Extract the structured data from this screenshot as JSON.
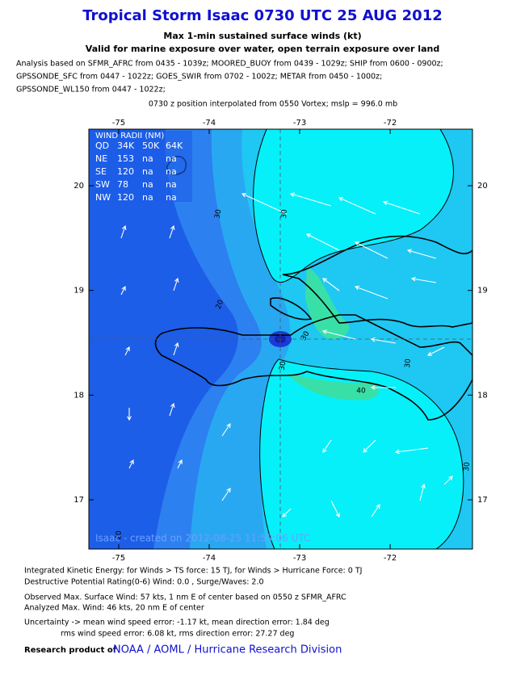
{
  "header": {
    "title": "Tropical Storm Isaac 0730 UTC 25 AUG 2012",
    "subtitle": "Max 1-min sustained surface winds (kt)",
    "subtitle2": "Valid for marine exposure over water, open terrain exposure over land",
    "analysis": [
      "Analysis based on SFMR_AFRC from 0435 - 1039z; MOORED_BUOY from 0439 - 1029z; SHIP from 0600 - 0900z;",
      "GPSSONDE_SFC from 0447 - 1022z; GOES_SWIR from 0702 - 1002z; METAR from 0450 - 1000z;",
      "GPSSONDE_WL150 from 0447 - 1022z;"
    ],
    "position": "0730 z position interpolated from 0550 Vortex; mslp = 996.0 mb"
  },
  "map": {
    "xlim": [
      -75.33,
      -71.09
    ],
    "ylim": [
      16.53,
      20.54
    ],
    "xticks": [
      -75,
      -74,
      -73,
      -72
    ],
    "yticks": [
      17,
      18,
      19,
      20
    ],
    "contour_labels": [
      30,
      30,
      20,
      30,
      30,
      40,
      30,
      30,
      20
    ],
    "stamp": "Isaac - created on 2012-08-25 11:59:06 UTC",
    "wind_radii": {
      "title": "WIND RADII (NM)",
      "columns": [
        "QD",
        "34K",
        "50K",
        "64K"
      ],
      "rows": [
        [
          "NE",
          "153",
          "na",
          "na"
        ],
        [
          "SE",
          "120",
          "na",
          "na"
        ],
        [
          "SW",
          "78",
          "na",
          "na"
        ],
        [
          "NW",
          "120",
          "na",
          "na"
        ]
      ]
    }
  },
  "footer": {
    "lines": [
      "Integrated Kinetic Energy: for Winds > TS force: 15 TJ, for Winds > Hurricane Force: 0 TJ",
      "Destructive Potential Rating(0-6)   Wind: 0.0 , Surge/Waves: 2.0",
      "Observed Max. Surface Wind: 57 kts, 1 nm E of center based on 0550 z SFMR_AFRC",
      "Analyzed Max. Wind: 46 kts, 20 nm  E of center",
      "Uncertainty -> mean wind speed error:  -1.17 kt, mean direction error: 1.84 deg",
      "rms wind speed error: 6.08 kt, rms direction error: 27.27 deg"
    ],
    "credit_prefix": "Research product of",
    "credit": "NOAA / AOML / Hurricane Research Division"
  }
}
